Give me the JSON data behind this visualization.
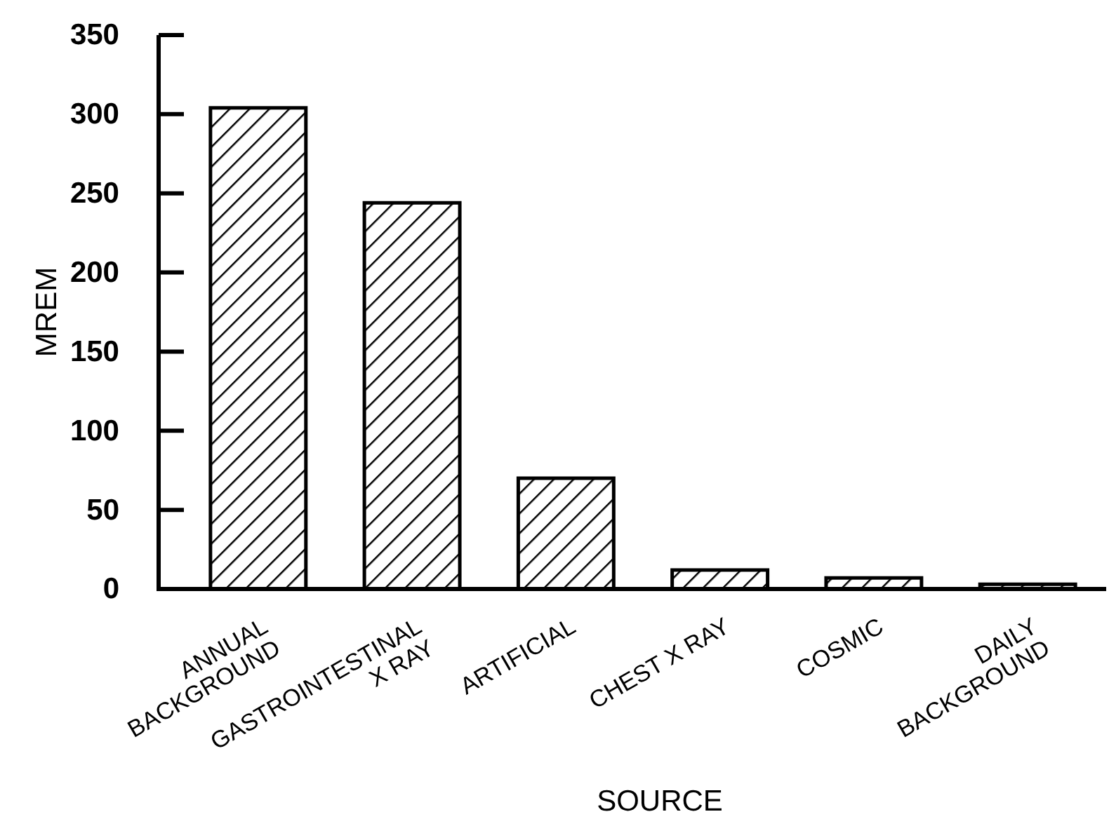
{
  "chart_data": {
    "type": "bar",
    "xlabel": "SOURCE",
    "ylabel": "MREM",
    "categories": [
      "ANNUAL\nBACKGROUND",
      "GASTROINTESTINAL\nX RAY",
      "ARTIFICIAL",
      "CHEST X RAY",
      "COSMIC",
      "DAILY\nBACKGROUND"
    ],
    "values": [
      304,
      244,
      70,
      12,
      7,
      3
    ],
    "color": "#000000",
    "ylim": [
      0,
      350
    ],
    "yticks": [
      0,
      50,
      100,
      150,
      200,
      250,
      300,
      350
    ],
    "grid": false
  }
}
